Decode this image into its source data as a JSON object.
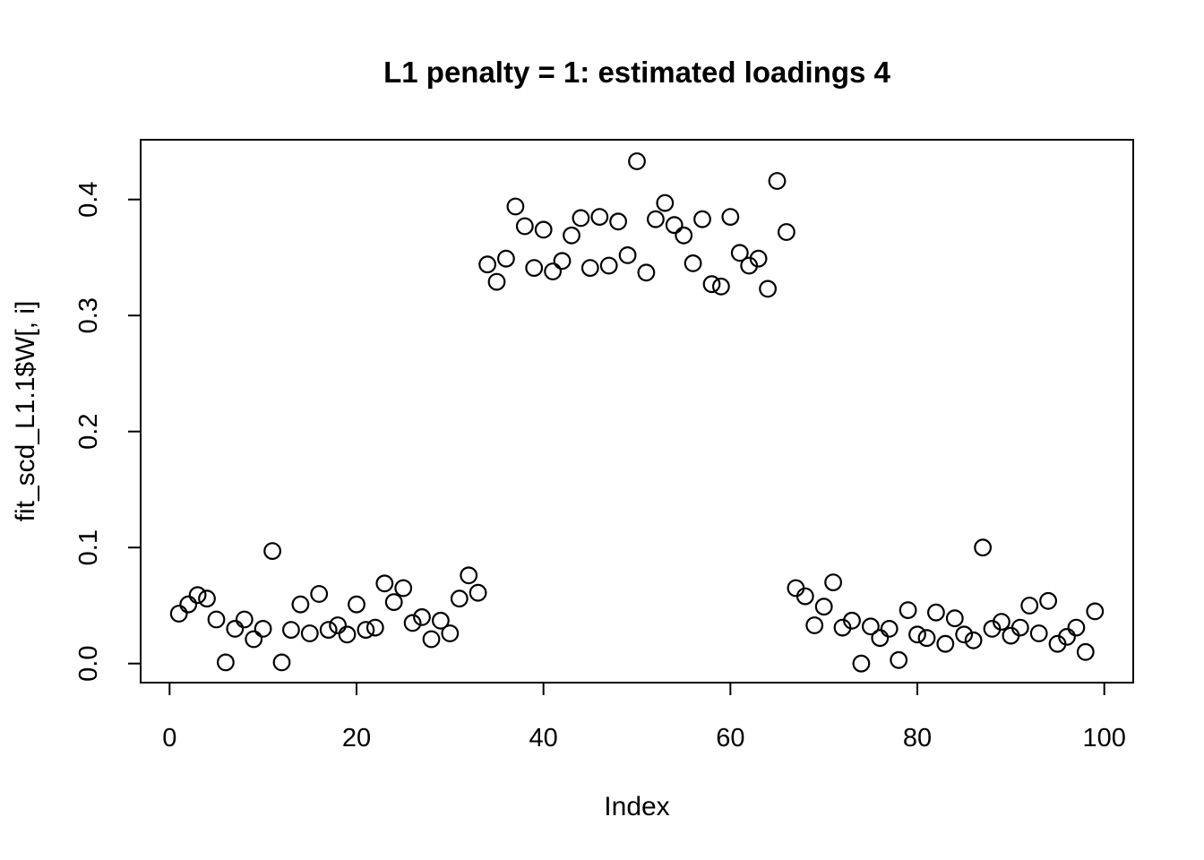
{
  "chart_data": {
    "type": "scatter",
    "title": "L1 penalty = 1: estimated loadings 4",
    "xlabel": "Index",
    "ylabel": "fit_scd_L1.1$W[, i]",
    "marker": "open-circle",
    "grid": false,
    "legend": null,
    "xlim": [
      0,
      100
    ],
    "ylim": [
      0.0,
      0.4
    ],
    "x_ticks": [
      0,
      20,
      40,
      60,
      80,
      100
    ],
    "y_ticks": [
      "0.0",
      "0.1",
      "0.2",
      "0.3",
      "0.4"
    ],
    "x": [
      1,
      2,
      3,
      4,
      5,
      6,
      7,
      8,
      9,
      10,
      11,
      12,
      13,
      14,
      15,
      16,
      17,
      18,
      19,
      20,
      21,
      22,
      23,
      24,
      25,
      26,
      27,
      28,
      29,
      30,
      31,
      32,
      33,
      34,
      35,
      36,
      37,
      38,
      39,
      40,
      41,
      42,
      43,
      44,
      45,
      46,
      47,
      48,
      49,
      50,
      51,
      52,
      53,
      54,
      55,
      56,
      57,
      58,
      59,
      60,
      61,
      62,
      63,
      64,
      65,
      66,
      67,
      68,
      69,
      70,
      71,
      72,
      73,
      74,
      75,
      76,
      77,
      78,
      79,
      80,
      81,
      82,
      83,
      84,
      85,
      86,
      87,
      88,
      89,
      90,
      91,
      92,
      93,
      94,
      95,
      96,
      97,
      98,
      99
    ],
    "y": [
      0.043,
      0.051,
      0.059,
      0.056,
      0.038,
      0.001,
      0.03,
      0.038,
      0.021,
      0.03,
      0.097,
      0.001,
      0.029,
      0.051,
      0.026,
      0.06,
      0.029,
      0.033,
      0.025,
      0.051,
      0.029,
      0.031,
      0.069,
      0.053,
      0.065,
      0.035,
      0.04,
      0.021,
      0.037,
      0.026,
      0.056,
      0.076,
      0.061,
      0.344,
      0.329,
      0.349,
      0.394,
      0.377,
      0.341,
      0.374,
      0.338,
      0.347,
      0.369,
      0.384,
      0.341,
      0.385,
      0.343,
      0.381,
      0.352,
      0.433,
      0.337,
      0.383,
      0.397,
      0.378,
      0.369,
      0.345,
      0.383,
      0.327,
      0.325,
      0.385,
      0.354,
      0.343,
      0.349,
      0.323,
      0.416,
      0.372,
      0.065,
      0.058,
      0.033,
      0.049,
      0.07,
      0.031,
      0.037,
      0.0,
      0.032,
      0.022,
      0.03,
      0.003,
      0.046,
      0.025,
      0.022,
      0.044,
      0.017,
      0.039,
      0.025,
      0.02,
      0.1,
      0.03,
      0.036,
      0.024,
      0.031,
      0.05,
      0.026,
      0.054,
      0.017,
      0.023,
      0.031,
      0.01,
      0.045
    ]
  },
  "colors": {
    "foreground": "#000000",
    "background": "#ffffff"
  }
}
